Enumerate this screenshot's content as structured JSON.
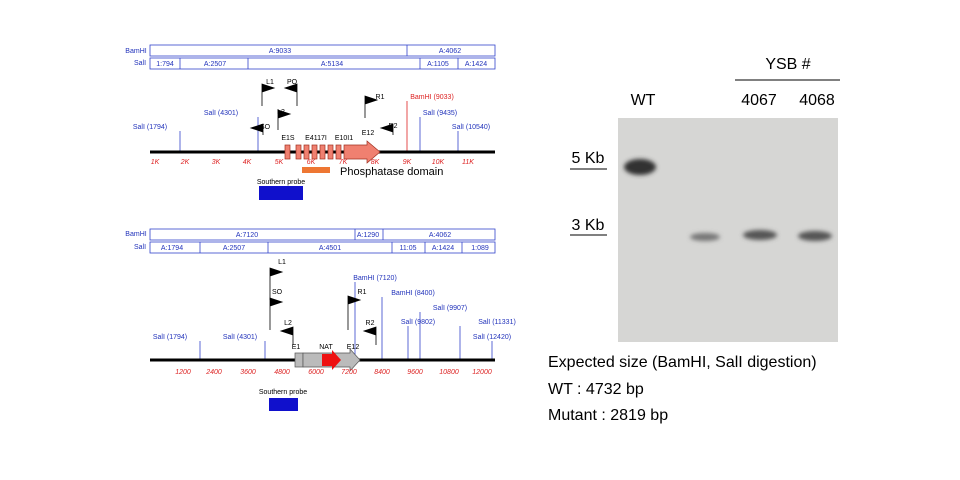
{
  "top_map": {
    "row_labels": [
      "BamHI",
      "SalI"
    ],
    "bamhi_fragments": [
      "A:9033",
      "A:4062"
    ],
    "sali_fragments": [
      "1:794",
      "A:2507",
      "A:5134",
      "A:1105",
      "A:1424"
    ],
    "axis_labels": [
      "1K",
      "2K",
      "3K",
      "4K",
      "5K",
      "6K",
      "7K",
      "8K",
      "9K",
      "10K",
      "11K"
    ],
    "sites": [
      "SalI (1794)",
      "SalI (4301)",
      "BamHI (9033)",
      "SalI (9435)",
      "SalI (10540)"
    ],
    "primers": [
      "L1",
      "PO",
      "L2",
      "SO",
      "R1",
      "R2"
    ],
    "exons": [
      "E1S",
      "E4117I",
      "E10I1",
      "E12"
    ],
    "domain_label": "Phosphatase domain",
    "probe_label": "Southern probe"
  },
  "bottom_map": {
    "row_labels": [
      "BamHI",
      "SalI"
    ],
    "bamhi_fragments": [
      "A:7120",
      "A:1290",
      "A:4062"
    ],
    "sali_fragments": [
      "A:1794",
      "A:2507",
      "A:4501",
      "11:05",
      "A:1424",
      "1:089"
    ],
    "axis_labels": [
      "1200",
      "2400",
      "3600",
      "4800",
      "6000",
      "7200",
      "8400",
      "9600",
      "10800",
      "12000"
    ],
    "sites": [
      "SalI (1794)",
      "SalI (4301)",
      "BamHI (7120)",
      "BamHI (8400)",
      "SalI (9907)",
      "SalI (9802)",
      "SalI (11331)",
      "SalI (12420)"
    ],
    "primers": [
      "L1",
      "SO",
      "L2",
      "R1",
      "R2"
    ],
    "exons": [
      "E1",
      "NAT",
      "E12"
    ],
    "probe_label": "Southern probe"
  },
  "blot": {
    "group_label": "YSB #",
    "lanes": [
      "WT",
      "4067",
      "4068"
    ],
    "markers": [
      "5 Kb",
      "3 Kb"
    ]
  },
  "notes": {
    "title": "Expected size (BamHI, SalI digestion)",
    "lines": [
      "WT : 4732 bp",
      "Mutant : 2819 bp"
    ]
  }
}
